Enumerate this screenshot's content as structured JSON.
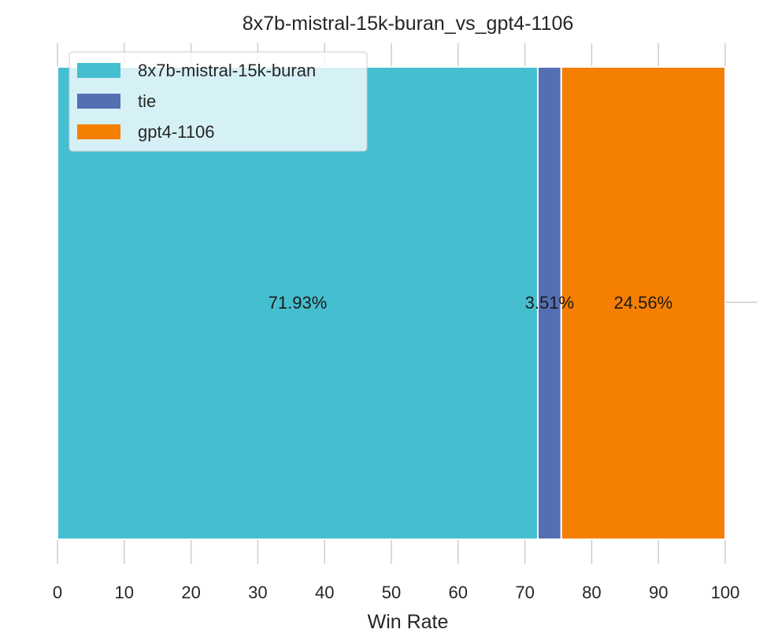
{
  "chart_data": {
    "type": "bar",
    "orientation": "horizontal-stacked",
    "title": "8x7b-mistral-15k-buran_vs_gpt4-1106",
    "xlabel": "Win Rate",
    "ylabel": "",
    "xlim": [
      0,
      100
    ],
    "x_ticks": [
      "0",
      "10",
      "20",
      "30",
      "40",
      "50",
      "60",
      "70",
      "80",
      "90",
      "100"
    ],
    "series": [
      {
        "name": "8x7b-mistral-15k-buran",
        "value": 71.93,
        "label": "71.93%",
        "color": "#45bfd0"
      },
      {
        "name": "tie",
        "value": 3.51,
        "label": "3.51%",
        "color": "#5470b3"
      },
      {
        "name": "gpt4-1106",
        "value": 24.56,
        "label": "24.56%",
        "color": "#f57f00"
      }
    ],
    "legend": {
      "position": "top-left"
    },
    "grid": false
  }
}
